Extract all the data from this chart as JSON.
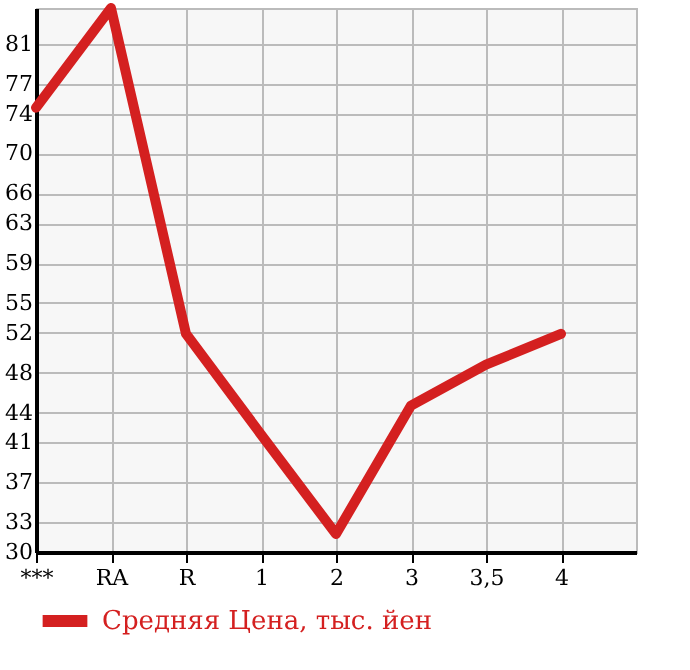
{
  "chart_data": {
    "type": "line",
    "categories": [
      "***",
      "RA",
      "R",
      "1",
      "2",
      "3",
      "3,5",
      "4"
    ],
    "series": [
      {
        "name": "Средняя Цена, тыс. йен",
        "color": "#d42020",
        "values": [
          74.6,
          84.6,
          51.9,
          41.8,
          31.8,
          44.7,
          48.8,
          51.9
        ]
      }
    ],
    "ylim": [
      30,
      84.6
    ],
    "yticks": [
      30,
      33,
      37,
      41,
      44,
      48,
      52,
      55,
      59,
      63,
      66,
      70,
      74,
      77,
      81
    ],
    "grid": true,
    "legend": "bottom left",
    "marker": "none"
  }
}
